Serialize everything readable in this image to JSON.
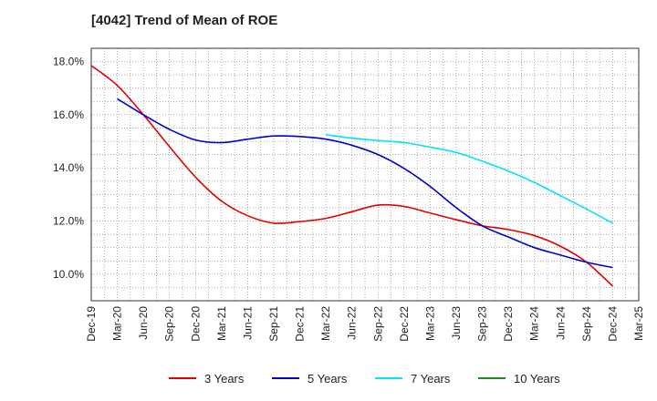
{
  "chart_data": {
    "type": "line",
    "title": "[4042]  Trend of Mean of ROE",
    "xlabel": "",
    "ylabel": "",
    "x": [
      "Dec-19",
      "Mar-20",
      "Jun-20",
      "Sep-20",
      "Dec-20",
      "Mar-21",
      "Jun-21",
      "Sep-21",
      "Dec-21",
      "Mar-22",
      "Jun-22",
      "Sep-22",
      "Dec-22",
      "Mar-23",
      "Jun-23",
      "Sep-23",
      "Dec-23",
      "Mar-24",
      "Jun-24",
      "Sep-24",
      "Dec-24",
      "Mar-25"
    ],
    "ylim": [
      9.0,
      18.5
    ],
    "yticks": [
      10.0,
      12.0,
      14.0,
      16.0,
      18.0
    ],
    "ytick_labels": [
      "10.0%",
      "12.0%",
      "14.0%",
      "16.0%",
      "18.0%"
    ],
    "grid": true,
    "legend_position": "bottom",
    "series": [
      {
        "name": "3 Years",
        "color": "#e00000",
        "values": [
          17.85,
          17.1,
          16.0,
          14.8,
          13.65,
          12.75,
          12.2,
          11.92,
          11.98,
          12.1,
          12.35,
          12.6,
          12.55,
          12.3,
          12.05,
          11.82,
          11.68,
          11.45,
          11.05,
          10.45,
          9.55,
          null
        ]
      },
      {
        "name": "5 Years",
        "color": "#0000cc",
        "values": [
          null,
          16.6,
          16.0,
          15.45,
          15.05,
          14.95,
          15.08,
          15.2,
          15.18,
          15.08,
          14.85,
          14.5,
          13.98,
          13.3,
          12.5,
          11.82,
          11.4,
          11.0,
          10.72,
          10.45,
          10.25,
          null
        ]
      },
      {
        "name": "7 Years",
        "color": "#00e5ee",
        "values": [
          null,
          null,
          null,
          null,
          null,
          null,
          null,
          null,
          null,
          15.25,
          15.12,
          15.03,
          14.95,
          14.78,
          14.58,
          14.25,
          13.88,
          13.45,
          12.95,
          12.45,
          11.92,
          null
        ]
      },
      {
        "name": "10 Years",
        "color": "#228822",
        "values": [
          null,
          null,
          null,
          null,
          null,
          null,
          null,
          null,
          null,
          null,
          null,
          null,
          null,
          null,
          null,
          null,
          null,
          null,
          null,
          null,
          null,
          null
        ]
      }
    ]
  }
}
